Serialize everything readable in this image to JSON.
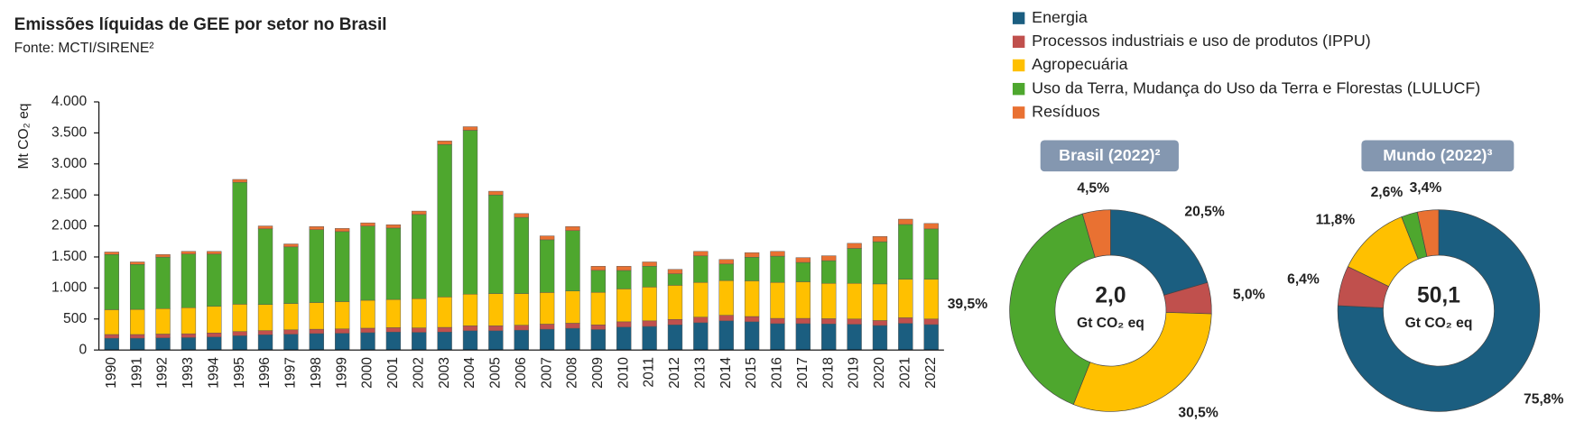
{
  "chart_data": [
    {
      "type": "bar",
      "stacked": true,
      "title": "Emissões líquidas de GEE por setor no Brasil",
      "subtitle": "Fonte: MCTI/SIRENE²",
      "y_label": "Mt CO₂ eq",
      "categories": [
        "1990",
        "1991",
        "1992",
        "1993",
        "1994",
        "1995",
        "1996",
        "1997",
        "1998",
        "1999",
        "2000",
        "2001",
        "2002",
        "2003",
        "2004",
        "2005",
        "2006",
        "2007",
        "2008",
        "2009",
        "2010",
        "2011",
        "2012",
        "2013",
        "2014",
        "2015",
        "2016",
        "2017",
        "2018",
        "2019",
        "2020",
        "2021",
        "2022"
      ],
      "series": [
        {
          "name": "Energia",
          "color": "#1b5e80",
          "values": [
            190,
            190,
            195,
            200,
            210,
            230,
            245,
            255,
            265,
            270,
            280,
            290,
            285,
            290,
            310,
            310,
            320,
            335,
            350,
            330,
            370,
            380,
            405,
            440,
            470,
            455,
            425,
            425,
            420,
            415,
            395,
            430,
            410
          ]
        },
        {
          "name": "Processos industriais e uso de produtos (IPPU)",
          "color": "#c0504d",
          "values": [
            60,
            60,
            62,
            62,
            65,
            68,
            68,
            70,
            70,
            70,
            72,
            70,
            72,
            75,
            80,
            80,
            80,
            82,
            82,
            75,
            85,
            90,
            88,
            90,
            90,
            85,
            85,
            85,
            85,
            85,
            80,
            90,
            90
          ]
        },
        {
          "name": "Agropecuária",
          "color": "#ffc000",
          "values": [
            400,
            405,
            410,
            420,
            430,
            440,
            420,
            425,
            430,
            440,
            450,
            455,
            470,
            490,
            510,
            520,
            510,
            510,
            520,
            525,
            530,
            545,
            550,
            560,
            560,
            575,
            580,
            590,
            570,
            575,
            590,
            620,
            640
          ]
        },
        {
          "name": "Uso da Terra, Mudança do Uso da Terra e Florestas (LULUCF)",
          "color": "#4ea72e",
          "values": [
            890,
            725,
            831,
            865,
            841,
            1966,
            1220,
            912,
            1175,
            1129,
            1195,
            1151,
            1358,
            2458,
            2642,
            1590,
            1228,
            850,
            973,
            354,
            297,
            335,
            186,
            427,
            266,
            380,
            423,
            312,
            365,
            563,
            681,
            884,
            812
          ]
        },
        {
          "name": "Resíduos",
          "color": "#e97132",
          "values": [
            40,
            40,
            42,
            43,
            44,
            46,
            47,
            48,
            50,
            51,
            53,
            54,
            55,
            57,
            58,
            60,
            62,
            63,
            65,
            66,
            68,
            70,
            71,
            73,
            74,
            75,
            77,
            78,
            80,
            82,
            84,
            86,
            88
          ]
        }
      ],
      "ylim": [
        0,
        4000
      ],
      "yticks": [
        0,
        500,
        {
          "value": 1000,
          "label": "1.000"
        },
        {
          "value": 1500,
          "label": "1.500"
        },
        {
          "value": 2000,
          "label": "2.000"
        },
        {
          "value": 2500,
          "label": "2.500"
        },
        {
          "value": 3000,
          "label": "3.000"
        },
        {
          "value": 3500,
          "label": "3.500"
        },
        {
          "value": 4000,
          "label": "4.000"
        }
      ],
      "grid": false,
      "legend": "top-right"
    },
    {
      "type": "pie",
      "donut": true,
      "title": "Brasil (2022)²",
      "center_text": "2,0",
      "center_unit": "Gt CO₂ eq",
      "values": [
        20.5,
        5.0,
        30.5,
        39.5,
        4.5
      ],
      "value_labels": [
        "20,5%",
        "5,0%",
        "30,5%",
        "39,5%",
        "4,5%"
      ],
      "colors": [
        "#1b5e80",
        "#c0504d",
        "#ffc000",
        "#4ea72e",
        "#e97132"
      ]
    },
    {
      "type": "pie",
      "donut": true,
      "title": "Mundo (2022)³",
      "center_text": "50,1",
      "center_unit": "Gt CO₂ eq",
      "values": [
        75.8,
        6.4,
        11.8,
        2.6,
        3.4
      ],
      "value_labels": [
        "75,8%",
        "6,4%",
        "11,8%",
        "2,6%",
        "3,4%"
      ],
      "colors": [
        "#1b5e80",
        "#c0504d",
        "#ffc000",
        "#4ea72e",
        "#e97132"
      ]
    }
  ]
}
